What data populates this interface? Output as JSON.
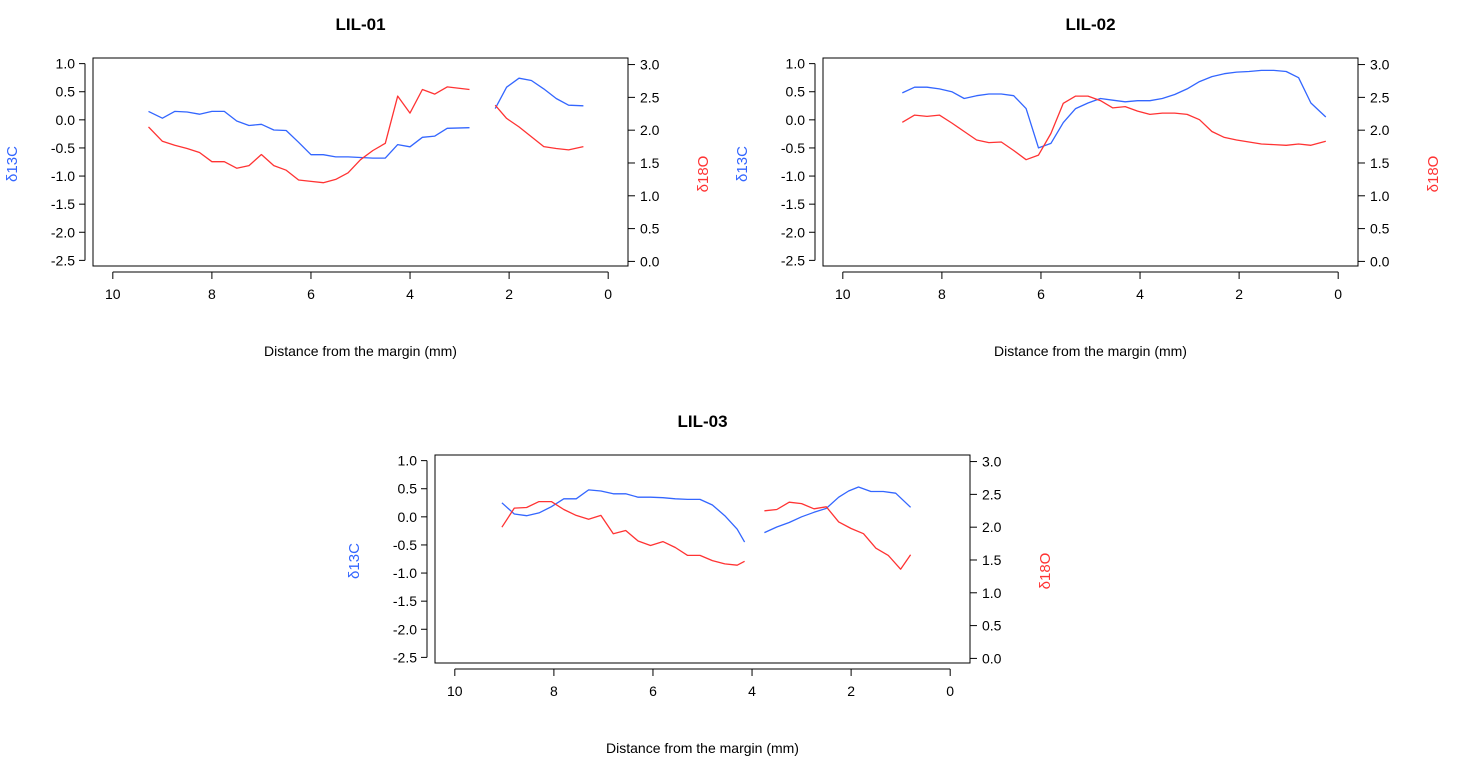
{
  "figure": {
    "left_axis_label": "δ13C",
    "right_axis_label": "δ18O",
    "colors": {
      "d13C": "#3366ff",
      "d18O": "#ff3333",
      "axis": "#000000",
      "background": "#ffffff"
    }
  },
  "chart_data": [
    {
      "type": "line",
      "title": "LIL-01",
      "xlabel": "Distance from the margin (mm)",
      "ylabel": "δ13C",
      "ylabel_right": "δ18O",
      "xlim": [
        10.4,
        -0.4
      ],
      "ylim": [
        -2.6,
        1.1
      ],
      "ylim_right": [
        -0.07,
        3.1
      ],
      "x_ticks": [
        10,
        8,
        6,
        4,
        2,
        0
      ],
      "y_ticks": [
        1.0,
        0.5,
        0.0,
        -0.5,
        -1.0,
        -1.5,
        -2.0,
        -2.5
      ],
      "y_tick_labels": [
        "1.0",
        "0.5",
        "0.0",
        "-0.5",
        "-1.0",
        "-1.5",
        "-2.0",
        "-2.5"
      ],
      "y_ticks_right": [
        3.0,
        2.5,
        2.0,
        1.5,
        1.0,
        0.5,
        0.0
      ],
      "y_tick_labels_right": [
        "3.0",
        "2.5",
        "2.0",
        "1.5",
        "1.0",
        "0.5",
        "0.0"
      ],
      "grid": false,
      "series": [
        {
          "axis": "left",
          "color": "#3366ff",
          "segments": [
            [
              [
                9.28,
                0.15
              ],
              [
                9.0,
                0.03
              ],
              [
                8.75,
                0.15
              ],
              [
                8.5,
                0.14
              ],
              [
                8.25,
                0.1
              ],
              [
                8.0,
                0.15
              ],
              [
                7.75,
                0.15
              ],
              [
                7.5,
                -0.02
              ],
              [
                7.25,
                -0.1
              ],
              [
                7.0,
                -0.08
              ],
              [
                6.75,
                -0.18
              ],
              [
                6.5,
                -0.19
              ],
              [
                6.25,
                -0.4
              ],
              [
                6.0,
                -0.62
              ],
              [
                5.75,
                -0.62
              ],
              [
                5.5,
                -0.66
              ],
              [
                5.25,
                -0.66
              ],
              [
                5.0,
                -0.67
              ],
              [
                4.75,
                -0.68
              ],
              [
                4.5,
                -0.68
              ],
              [
                4.25,
                -0.44
              ],
              [
                4.0,
                -0.48
              ],
              [
                3.75,
                -0.31
              ],
              [
                3.5,
                -0.29
              ],
              [
                3.25,
                -0.15
              ],
              [
                2.8,
                -0.14
              ]
            ],
            [
              [
                2.28,
                0.2
              ],
              [
                2.05,
                0.58
              ],
              [
                1.8,
                0.74
              ],
              [
                1.55,
                0.7
              ],
              [
                1.3,
                0.55
              ],
              [
                1.05,
                0.38
              ],
              [
                0.8,
                0.26
              ],
              [
                0.5,
                0.25
              ]
            ]
          ]
        },
        {
          "axis": "right",
          "color": "#ff3333",
          "segments": [
            [
              [
                9.28,
                2.05
              ],
              [
                9.0,
                1.83
              ],
              [
                8.75,
                1.77
              ],
              [
                8.5,
                1.72
              ],
              [
                8.25,
                1.66
              ],
              [
                8.0,
                1.52
              ],
              [
                7.75,
                1.52
              ],
              [
                7.5,
                1.42
              ],
              [
                7.25,
                1.46
              ],
              [
                7.0,
                1.63
              ],
              [
                6.75,
                1.46
              ],
              [
                6.5,
                1.39
              ],
              [
                6.25,
                1.24
              ],
              [
                6.0,
                1.22
              ],
              [
                5.75,
                1.2
              ],
              [
                5.5,
                1.25
              ],
              [
                5.25,
                1.35
              ],
              [
                5.0,
                1.55
              ],
              [
                4.75,
                1.69
              ],
              [
                4.5,
                1.8
              ],
              [
                4.25,
                2.52
              ],
              [
                4.0,
                2.26
              ],
              [
                3.75,
                2.62
              ],
              [
                3.5,
                2.55
              ],
              [
                3.25,
                2.66
              ],
              [
                2.8,
                2.62
              ]
            ],
            [
              [
                2.28,
                2.38
              ],
              [
                2.05,
                2.18
              ],
              [
                1.8,
                2.05
              ],
              [
                1.55,
                1.9
              ],
              [
                1.3,
                1.75
              ],
              [
                1.05,
                1.72
              ],
              [
                0.8,
                1.7
              ],
              [
                0.5,
                1.75
              ]
            ]
          ]
        }
      ]
    },
    {
      "type": "line",
      "title": "LIL-02",
      "xlabel": "Distance from the margin (mm)",
      "ylabel": "δ13C",
      "ylabel_right": "δ18O",
      "xlim": [
        10.4,
        -0.4
      ],
      "ylim": [
        -2.6,
        1.1
      ],
      "ylim_right": [
        -0.07,
        3.1
      ],
      "x_ticks": [
        10,
        8,
        6,
        4,
        2,
        0
      ],
      "y_ticks": [
        1.0,
        0.5,
        0.0,
        -0.5,
        -1.0,
        -1.5,
        -2.0,
        -2.5
      ],
      "y_tick_labels": [
        "1.0",
        "0.5",
        "0.0",
        "-0.5",
        "-1.0",
        "-1.5",
        "-2.0",
        "-2.5"
      ],
      "y_ticks_right": [
        3.0,
        2.5,
        2.0,
        1.5,
        1.0,
        0.5,
        0.0
      ],
      "y_tick_labels_right": [
        "3.0",
        "2.5",
        "2.0",
        "1.5",
        "1.0",
        "0.5",
        "0.0"
      ],
      "grid": false,
      "series": [
        {
          "axis": "left",
          "color": "#3366ff",
          "segments": [
            [
              [
                8.8,
                0.48
              ],
              [
                8.55,
                0.58
              ],
              [
                8.3,
                0.58
              ],
              [
                8.05,
                0.55
              ],
              [
                7.8,
                0.5
              ],
              [
                7.55,
                0.38
              ],
              [
                7.3,
                0.43
              ],
              [
                7.05,
                0.46
              ],
              [
                6.8,
                0.46
              ],
              [
                6.55,
                0.43
              ],
              [
                6.3,
                0.2
              ],
              [
                6.05,
                -0.5
              ],
              [
                5.8,
                -0.42
              ],
              [
                5.55,
                -0.05
              ],
              [
                5.3,
                0.2
              ],
              [
                5.05,
                0.3
              ],
              [
                4.8,
                0.38
              ],
              [
                4.55,
                0.35
              ],
              [
                4.3,
                0.32
              ],
              [
                4.05,
                0.34
              ],
              [
                3.8,
                0.34
              ],
              [
                3.55,
                0.38
              ],
              [
                3.3,
                0.45
              ],
              [
                3.05,
                0.55
              ],
              [
                2.8,
                0.68
              ],
              [
                2.55,
                0.77
              ],
              [
                2.3,
                0.82
              ],
              [
                2.05,
                0.85
              ],
              [
                1.8,
                0.86
              ],
              [
                1.55,
                0.88
              ],
              [
                1.3,
                0.88
              ],
              [
                1.05,
                0.86
              ],
              [
                0.8,
                0.75
              ],
              [
                0.55,
                0.3
              ],
              [
                0.25,
                0.05
              ]
            ]
          ]
        },
        {
          "axis": "right",
          "color": "#ff3333",
          "segments": [
            [
              [
                8.8,
                2.12
              ],
              [
                8.55,
                2.23
              ],
              [
                8.3,
                2.21
              ],
              [
                8.05,
                2.23
              ],
              [
                7.8,
                2.11
              ],
              [
                7.55,
                1.98
              ],
              [
                7.3,
                1.85
              ],
              [
                7.05,
                1.81
              ],
              [
                6.8,
                1.82
              ],
              [
                6.55,
                1.69
              ],
              [
                6.3,
                1.55
              ],
              [
                6.05,
                1.62
              ],
              [
                5.8,
                1.95
              ],
              [
                5.55,
                2.41
              ],
              [
                5.3,
                2.52
              ],
              [
                5.05,
                2.52
              ],
              [
                4.8,
                2.45
              ],
              [
                4.55,
                2.34
              ],
              [
                4.3,
                2.36
              ],
              [
                4.05,
                2.29
              ],
              [
                3.8,
                2.24
              ],
              [
                3.55,
                2.26
              ],
              [
                3.3,
                2.26
              ],
              [
                3.05,
                2.24
              ],
              [
                2.8,
                2.16
              ],
              [
                2.55,
                1.98
              ],
              [
                2.3,
                1.89
              ],
              [
                2.05,
                1.85
              ],
              [
                1.8,
                1.82
              ],
              [
                1.55,
                1.79
              ],
              [
                1.3,
                1.78
              ],
              [
                1.05,
                1.77
              ],
              [
                0.8,
                1.79
              ],
              [
                0.55,
                1.77
              ],
              [
                0.25,
                1.83
              ]
            ]
          ]
        }
      ]
    },
    {
      "type": "line",
      "title": "LIL-03",
      "xlabel": "Distance from the margin (mm)",
      "ylabel": "δ13C",
      "ylabel_right": "δ18O",
      "xlim": [
        10.4,
        -0.4
      ],
      "ylim": [
        -2.6,
        1.1
      ],
      "ylim_right": [
        -0.07,
        3.1
      ],
      "x_ticks": [
        10,
        8,
        6,
        4,
        2,
        0
      ],
      "y_ticks": [
        1.0,
        0.5,
        0.0,
        -0.5,
        -1.0,
        -1.5,
        -2.0,
        -2.5
      ],
      "y_tick_labels": [
        "1.0",
        "0.5",
        "0.0",
        "-0.5",
        "-1.0",
        "-1.5",
        "-2.0",
        "-2.5"
      ],
      "y_ticks_right": [
        3.0,
        2.5,
        2.0,
        1.5,
        1.0,
        0.5,
        0.0
      ],
      "y_tick_labels_right": [
        "3.0",
        "2.5",
        "2.0",
        "1.5",
        "1.0",
        "0.5",
        "0.0"
      ],
      "grid": false,
      "series": [
        {
          "axis": "left",
          "color": "#3366ff",
          "segments": [
            [
              [
                9.05,
                0.25
              ],
              [
                8.8,
                0.05
              ],
              [
                8.55,
                0.02
              ],
              [
                8.3,
                0.07
              ],
              [
                8.05,
                0.18
              ],
              [
                7.8,
                0.32
              ],
              [
                7.55,
                0.32
              ],
              [
                7.3,
                0.48
              ],
              [
                7.05,
                0.46
              ],
              [
                6.8,
                0.41
              ],
              [
                6.55,
                0.41
              ],
              [
                6.3,
                0.35
              ],
              [
                6.05,
                0.35
              ],
              [
                5.8,
                0.34
              ],
              [
                5.55,
                0.32
              ],
              [
                5.3,
                0.31
              ],
              [
                5.05,
                0.31
              ],
              [
                4.8,
                0.21
              ],
              [
                4.55,
                0.02
              ],
              [
                4.3,
                -0.22
              ],
              [
                4.15,
                -0.45
              ]
            ],
            [
              [
                3.75,
                -0.28
              ],
              [
                3.5,
                -0.18
              ],
              [
                3.25,
                -0.1
              ],
              [
                3.0,
                0.0
              ],
              [
                2.75,
                0.08
              ],
              [
                2.5,
                0.15
              ],
              [
                2.25,
                0.35
              ],
              [
                2.05,
                0.46
              ],
              [
                1.85,
                0.53
              ],
              [
                1.6,
                0.45
              ],
              [
                1.35,
                0.45
              ],
              [
                1.1,
                0.42
              ],
              [
                0.8,
                0.17
              ]
            ]
          ]
        },
        {
          "axis": "right",
          "color": "#ff3333",
          "segments": [
            [
              [
                9.05,
                2.0
              ],
              [
                8.8,
                2.29
              ],
              [
                8.55,
                2.3
              ],
              [
                8.3,
                2.39
              ],
              [
                8.05,
                2.39
              ],
              [
                7.8,
                2.27
              ],
              [
                7.55,
                2.18
              ],
              [
                7.3,
                2.12
              ],
              [
                7.05,
                2.18
              ],
              [
                6.8,
                1.9
              ],
              [
                6.55,
                1.95
              ],
              [
                6.3,
                1.79
              ],
              [
                6.05,
                1.72
              ],
              [
                5.8,
                1.78
              ],
              [
                5.55,
                1.69
              ],
              [
                5.3,
                1.57
              ],
              [
                5.05,
                1.57
              ],
              [
                4.8,
                1.49
              ],
              [
                4.55,
                1.44
              ],
              [
                4.3,
                1.42
              ],
              [
                4.15,
                1.48
              ]
            ],
            [
              [
                3.75,
                2.25
              ],
              [
                3.5,
                2.27
              ],
              [
                3.25,
                2.38
              ],
              [
                3.0,
                2.36
              ],
              [
                2.75,
                2.28
              ],
              [
                2.5,
                2.31
              ],
              [
                2.25,
                2.08
              ],
              [
                2.0,
                1.98
              ],
              [
                1.75,
                1.9
              ],
              [
                1.5,
                1.68
              ],
              [
                1.25,
                1.57
              ],
              [
                1.0,
                1.36
              ],
              [
                0.8,
                1.58
              ]
            ]
          ]
        }
      ]
    }
  ]
}
